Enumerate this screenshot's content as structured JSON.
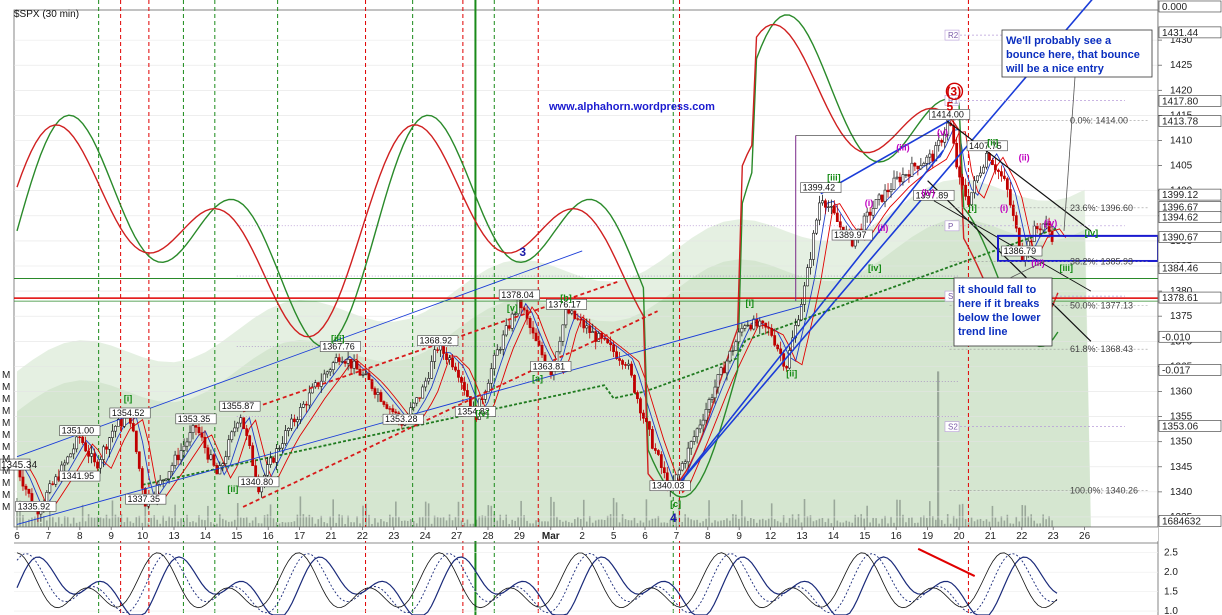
{
  "header": {
    "title": "$SPX (30 min)",
    "website": "www.alphahorn.wordpress.com"
  },
  "colors": {
    "candle_up": "#1a1a1a",
    "candle_down": "#c00000",
    "red_line": "#e00000",
    "green_line": "#1a8a1a",
    "blue_line": "#1a3cd8",
    "dashed_green": "#1f7a1f",
    "area_fill": "#dcebd8"
  },
  "chart_data": {
    "type": "candlestick",
    "ylim": [
      1333,
      1436
    ],
    "y_ticks": [
      1335,
      1340,
      1345,
      1350,
      1355,
      1360,
      1365,
      1370,
      1375,
      1380,
      1385,
      1390,
      1395,
      1400,
      1405,
      1410,
      1415,
      1420,
      1425,
      1430
    ],
    "x_tick_labels": [
      "6",
      "7",
      "8",
      "9",
      "10",
      "13",
      "14",
      "15",
      "16",
      "17",
      "21",
      "22",
      "23",
      "24",
      "27",
      "28",
      "29",
      "Mar",
      "2",
      "5",
      "6",
      "7",
      "8",
      "9",
      "12",
      "13",
      "14",
      "15",
      "16",
      "19",
      "20",
      "21",
      "22",
      "23",
      "26"
    ],
    "price_levels": [
      {
        "value": "1335.92",
        "price": 1335.92,
        "session": 0.6
      },
      {
        "value": "1341.95",
        "price": 1341.95,
        "session": 2.0
      },
      {
        "value": "1337.35",
        "price": 1337.35,
        "session": 4.1
      },
      {
        "value": "1351.00",
        "price": 1351.0,
        "session": 2.0
      },
      {
        "value": "1354.52",
        "price": 1354.52,
        "session": 3.6
      },
      {
        "value": "1353.35",
        "price": 1353.35,
        "session": 5.7
      },
      {
        "value": "1355.87",
        "price": 1355.87,
        "session": 7.1
      },
      {
        "value": "1340.80",
        "price": 1340.8,
        "session": 7.7
      },
      {
        "value": "1367.76",
        "price": 1367.76,
        "session": 10.3
      },
      {
        "value": "1353.28",
        "price": 1353.28,
        "session": 12.3
      },
      {
        "value": "1368.92",
        "price": 1368.92,
        "session": 13.4
      },
      {
        "value": "1354.82",
        "price": 1354.82,
        "session": 14.6
      },
      {
        "value": "1378.04",
        "price": 1378.04,
        "session": 16.0
      },
      {
        "value": "1376.17",
        "price": 1376.17,
        "session": 17.5
      },
      {
        "value": "1363.81",
        "price": 1363.81,
        "session": 17.0
      },
      {
        "value": "1340.03",
        "price": 1340.03,
        "session": 20.8
      },
      {
        "value": "1399.42",
        "price": 1399.42,
        "session": 25.6
      },
      {
        "value": "1389.97",
        "price": 1389.97,
        "session": 26.6
      },
      {
        "value": "1397.89",
        "price": 1397.89,
        "session": 29.2
      },
      {
        "value": "1414.00",
        "price": 1414.0,
        "session": 29.7
      },
      {
        "value": "1407.75",
        "price": 1407.75,
        "session": 30.9
      },
      {
        "value": "1386.79",
        "price": 1386.79,
        "session": 32.0
      }
    ],
    "wave_labels": [
      {
        "text": "[i]",
        "price": 1358,
        "session": 3.4,
        "color": "green"
      },
      {
        "text": "[ii]",
        "price": 1340,
        "session": 6.7,
        "color": "green"
      },
      {
        "text": "[iii]",
        "price": 1370,
        "session": 10.0,
        "color": "green"
      },
      {
        "text": "[iv]",
        "price": 1355,
        "session": 14.6,
        "color": "green"
      },
      {
        "text": "[v]",
        "price": 1376,
        "session": 15.6,
        "color": "green"
      },
      {
        "text": "[b]",
        "price": 1378,
        "session": 17.3,
        "color": "green"
      },
      {
        "text": "[a]",
        "price": 1362,
        "session": 16.4,
        "color": "green"
      },
      {
        "text": "[c]",
        "price": 1337,
        "session": 20.8,
        "color": "green"
      },
      {
        "text": "[i]",
        "price": 1377,
        "session": 23.2,
        "color": "green"
      },
      {
        "text": "[ii]",
        "price": 1363,
        "session": 24.5,
        "color": "green"
      },
      {
        "text": "[iii]",
        "price": 1402,
        "session": 25.8,
        "color": "green"
      },
      {
        "text": "[iv]",
        "price": 1384,
        "session": 27.1,
        "color": "green"
      },
      {
        "text": "(i)",
        "price": 1397,
        "session": 27.0,
        "color": "magenta"
      },
      {
        "text": "(ii)",
        "price": 1392,
        "session": 27.4,
        "color": "magenta"
      },
      {
        "text": "(iii)",
        "price": 1408,
        "session": 28.0,
        "color": "magenta"
      },
      {
        "text": "(iv)",
        "price": 1399,
        "session": 28.8,
        "color": "magenta"
      },
      {
        "text": "(v)",
        "price": 1411,
        "session": 29.3,
        "color": "magenta"
      },
      {
        "text": "[ii]",
        "price": 1409,
        "session": 30.9,
        "color": "green"
      },
      {
        "text": "[i]",
        "price": 1396,
        "session": 30.3,
        "color": "green"
      },
      {
        "text": "(i)",
        "price": 1396,
        "session": 31.3,
        "color": "magenta"
      },
      {
        "text": "(ii)",
        "price": 1406,
        "session": 31.9,
        "color": "magenta"
      },
      {
        "text": "(iii)",
        "price": 1385,
        "session": 32.3,
        "color": "magenta"
      },
      {
        "text": "(iv)",
        "price": 1393,
        "session": 32.7,
        "color": "magenta"
      },
      {
        "text": "[iii]",
        "price": 1384,
        "session": 33.2,
        "color": "green"
      },
      {
        "text": "[iv]",
        "price": 1391,
        "session": 34.0,
        "color": "green"
      }
    ],
    "major_labels": [
      {
        "text": "3",
        "price": 1387,
        "session": 16.0,
        "color": "#1a1aa8"
      },
      {
        "text": "4",
        "price": 1334,
        "session": 20.8,
        "color": "#1a1aa8"
      },
      {
        "text": "5",
        "price": 1416,
        "session": 29.6,
        "color": "#d00000"
      },
      {
        "text": "(3)",
        "price": 1419,
        "session": 29.6,
        "color": "#d00000"
      }
    ],
    "fib_levels": [
      {
        "label": "0.0%: 1414.00",
        "price": 1414.0
      },
      {
        "label": "23.6%: 1396.60",
        "price": 1396.6
      },
      {
        "label": "38.2%: 1385.93",
        "price": 1385.93
      },
      {
        "label": "50.0%: 1377.13",
        "price": 1377.13
      },
      {
        "label": "61.8%: 1368.43",
        "price": 1368.43
      },
      {
        "label": "100.0%: 1340.26",
        "price": 1340.26
      }
    ],
    "pivots": [
      {
        "label": "R2",
        "price": 1431.0
      },
      {
        "label": "R1",
        "price": 1418.0
      },
      {
        "label": "P",
        "price": 1393.0
      },
      {
        "label": "S1",
        "price": 1379.0
      },
      {
        "label": "S2",
        "price": 1353.0
      }
    ],
    "right_axis_labels": [
      {
        "value": "0.000",
        "price": 1436.6,
        "bg": "#ffffff",
        "fg": "#222"
      },
      {
        "value": "1431.44",
        "price": 1431.44,
        "bg": "#ffffff",
        "fg": "#222"
      },
      {
        "value": "1417.80",
        "price": 1417.8,
        "bg": "#ffffff",
        "fg": "#222"
      },
      {
        "value": "1413.78",
        "price": 1413.78,
        "bg": "#ffffff",
        "fg": "#222"
      },
      {
        "value": "1399.12",
        "price": 1399.12,
        "bg": "#ffffff",
        "fg": "#222"
      },
      {
        "value": "1396.67",
        "price": 1396.67,
        "bg": "#ffffff",
        "fg": "#222"
      },
      {
        "value": "1394.62",
        "price": 1394.62,
        "bg": "#ffffff",
        "fg": "#222"
      },
      {
        "value": "1390.67",
        "price": 1390.67,
        "bg": "#ffffff",
        "fg": "#222"
      },
      {
        "value": "1384.46",
        "price": 1384.46,
        "bg": "#ffffff",
        "fg": "#222"
      },
      {
        "value": "1378.61",
        "price": 1378.61,
        "bg": "#ffffff",
        "fg": "#222"
      },
      {
        "value": "-0.010",
        "price": 1370.8,
        "bg": "#ffffff",
        "fg": "#222"
      },
      {
        "value": "-0.017",
        "price": 1364.2,
        "bg": "#ffffff",
        "fg": "#222"
      },
      {
        "value": "1353.06",
        "price": 1353.06,
        "bg": "#ffffff",
        "fg": "#222"
      },
      {
        "value": "1684632",
        "price": 1334.1,
        "bg": "#ffffff",
        "fg": "#222"
      }
    ],
    "left_axis_label": {
      "value": "1345.34",
      "price": 1345.34
    },
    "annotations": [
      {
        "lines": [
          "We'll probably see a",
          "bounce here, that bounce",
          "will be a nice entry"
        ]
      },
      {
        "lines": [
          "it should fall to",
          "here if it breaks",
          "below the lower",
          "trend line"
        ]
      }
    ],
    "lower_panel_ticks": [
      "2.5",
      "2.0",
      "1.5",
      "1.0"
    ],
    "left_margin_marks": [
      "M",
      "M",
      "M",
      "M",
      "M",
      "M",
      "M",
      "M",
      "M",
      "M",
      "M",
      "M"
    ]
  }
}
